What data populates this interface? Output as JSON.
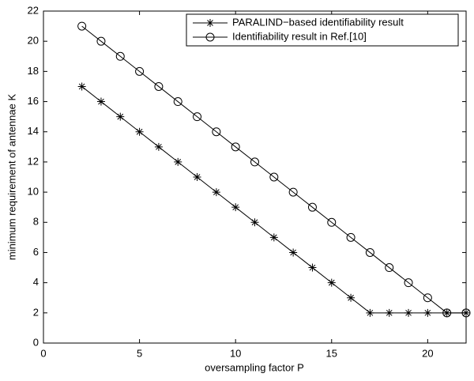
{
  "chart_data": {
    "type": "line",
    "xlabel": "oversampling factor P",
    "ylabel": "minimum requirement of antennae K",
    "x": [
      2,
      3,
      4,
      5,
      6,
      7,
      8,
      9,
      10,
      11,
      12,
      13,
      14,
      15,
      16,
      17,
      18,
      19,
      20,
      21,
      22
    ],
    "series": [
      {
        "name": "PARALIND−based identifiability result",
        "color": "#000000",
        "marker": "asterisk",
        "values": [
          17,
          16,
          15,
          14,
          13,
          12,
          11,
          10,
          9,
          8,
          7,
          6,
          5,
          4,
          3,
          2,
          2,
          2,
          2,
          2,
          2
        ]
      },
      {
        "name": "Identifiability result in Ref.[10]",
        "color": "#000000",
        "marker": "circle",
        "values": [
          21,
          20,
          19,
          18,
          17,
          16,
          15,
          14,
          13,
          12,
          11,
          10,
          9,
          8,
          7,
          6,
          5,
          4,
          3,
          2,
          2
        ]
      }
    ],
    "xlim": [
      0,
      22
    ],
    "ylim": [
      0,
      22
    ],
    "xticks": [
      0,
      5,
      10,
      15,
      20
    ],
    "yticks": [
      0,
      2,
      4,
      6,
      8,
      10,
      12,
      14,
      16,
      18,
      20,
      22
    ],
    "legend": "upper right"
  }
}
